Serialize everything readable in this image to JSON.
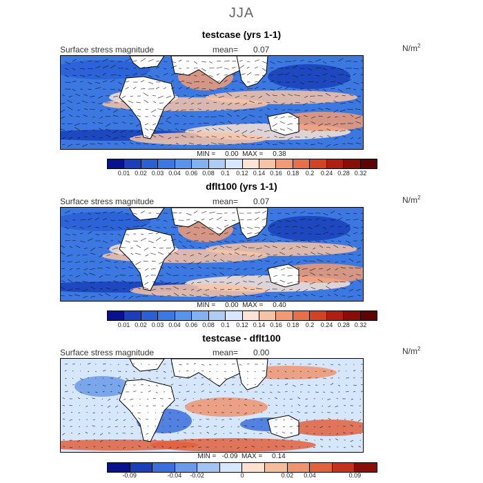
{
  "season": "JJA",
  "panels": [
    {
      "title": "testcase (yrs 1-1)",
      "variable": "Surface stress magnitude",
      "mean_label": "mean=",
      "mean_value": "0.07",
      "units_base": "N/m",
      "units_exp": "2",
      "minmax_text": "MIN =     0.00  MAX =     0.38",
      "palette": "abs",
      "colorbar_labels": [
        "0.01",
        "0.02",
        "0.03",
        "0.04",
        "0.06",
        "0.08",
        "0.1",
        "0.12",
        "0.14",
        "0.16",
        "0.18",
        "0.2",
        "0.24",
        "0.28",
        "0.32"
      ]
    },
    {
      "title": "dflt100 (yrs 1-1)",
      "variable": "Surface stress magnitude",
      "mean_label": "mean=",
      "mean_value": "0.07",
      "units_base": "N/m",
      "units_exp": "2",
      "minmax_text": "MIN =     0.00  MAX =     0.40",
      "palette": "abs",
      "colorbar_labels": [
        "0.01",
        "0.02",
        "0.03",
        "0.04",
        "0.06",
        "0.08",
        "0.1",
        "0.12",
        "0.14",
        "0.16",
        "0.18",
        "0.2",
        "0.24",
        "0.28",
        "0.32"
      ]
    },
    {
      "title": "testcase - dflt100",
      "variable": "Surface stress magnitude",
      "mean_label": "mean=",
      "mean_value": "0.00",
      "units_base": "N/m",
      "units_exp": "2",
      "minmax_text": "MIN =   -0.09  MAX =     0.14",
      "palette": "diff",
      "colorbar_labels": [
        "-0.09",
        "-0.04",
        "-0.02",
        "0",
        "0.02",
        "0.04",
        "0.09"
      ]
    }
  ],
  "colors": {
    "abs": [
      "#08128f",
      "#1a3fb8",
      "#2a5fd6",
      "#3b78e2",
      "#5a94ea",
      "#83b2f0",
      "#aecdf6",
      "#d8e7fb",
      "#fbe4d6",
      "#f7c3a6",
      "#f19b76",
      "#e66f4c",
      "#d24326",
      "#b01f12",
      "#8a0e08",
      "#5e0404"
    ],
    "diff": [
      "#08128f",
      "#1a3fb8",
      "#3b6fdc",
      "#6a9ae8",
      "#a3c4f3",
      "#d6e6fb",
      "#fbe1d0",
      "#f6bd9c",
      "#ef9470",
      "#e0623f",
      "#c4321d",
      "#8a0e08"
    ],
    "land": "#ffffff",
    "coast": "#000000"
  },
  "chart_data": {
    "type": "heatmap",
    "description_type": "global map contour panels with colorbars",
    "panels": [
      {
        "name": "testcase (yrs 1-1)",
        "mean": 0.07,
        "min": 0.0,
        "max": 0.38,
        "levels": [
          0.01,
          0.02,
          0.03,
          0.04,
          0.06,
          0.08,
          0.1,
          0.12,
          0.14,
          0.16,
          0.18,
          0.2,
          0.24,
          0.28,
          0.32
        ]
      },
      {
        "name": "dflt100 (yrs 1-1)",
        "mean": 0.07,
        "min": 0.0,
        "max": 0.4,
        "levels": [
          0.01,
          0.02,
          0.03,
          0.04,
          0.06,
          0.08,
          0.1,
          0.12,
          0.14,
          0.16,
          0.18,
          0.2,
          0.24,
          0.28,
          0.32
        ]
      },
      {
        "name": "testcase - dflt100",
        "mean": 0.0,
        "min": -0.09,
        "max": 0.14,
        "levels": [
          -0.09,
          -0.04,
          -0.02,
          0,
          0.02,
          0.04,
          0.09
        ]
      }
    ]
  }
}
